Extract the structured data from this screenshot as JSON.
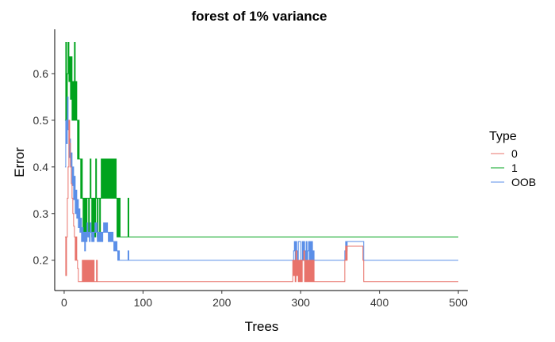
{
  "chart_data": {
    "type": "line",
    "title": "forest of 1% variance",
    "xlabel": "Trees",
    "ylabel": "Error",
    "xlim": [
      -12,
      512
    ],
    "ylim": [
      0.135,
      0.695
    ],
    "x_ticks": [
      0,
      100,
      200,
      300,
      400,
      500
    ],
    "y_ticks": [
      0.2,
      0.3,
      0.4,
      0.5,
      0.6
    ],
    "grid": false,
    "legend": {
      "title": "Type",
      "position": "right"
    },
    "series": [
      {
        "name": "1",
        "color": "#00a31d",
        "points": [
          [
            1,
            0.5
          ],
          [
            2,
            0.667
          ],
          [
            3,
            0.5
          ],
          [
            4,
            0.6
          ],
          [
            5,
            0.667
          ],
          [
            6,
            0.583
          ],
          [
            7,
            0.636
          ],
          [
            8,
            0.545
          ],
          [
            9,
            0.636
          ],
          [
            10,
            0.5
          ],
          [
            11,
            0.583
          ],
          [
            12,
            0.5
          ],
          [
            13,
            0.667
          ],
          [
            14,
            0.5
          ],
          [
            15,
            0.583
          ],
          [
            16,
            0.5
          ],
          [
            17,
            0.417
          ],
          [
            18,
            0.5
          ],
          [
            19,
            0.417
          ],
          [
            20,
            0.417
          ],
          [
            21,
            0.333
          ],
          [
            22,
            0.417
          ],
          [
            23,
            0.333
          ],
          [
            24,
            0.25
          ],
          [
            25,
            0.333
          ],
          [
            26,
            0.25
          ],
          [
            27,
            0.333
          ],
          [
            28,
            0.25
          ],
          [
            29,
            0.333
          ],
          [
            30,
            0.333
          ],
          [
            31,
            0.25
          ],
          [
            32,
            0.333
          ],
          [
            33,
            0.417
          ],
          [
            34,
            0.333
          ],
          [
            35,
            0.25
          ],
          [
            36,
            0.333
          ],
          [
            37,
            0.25
          ],
          [
            38,
            0.333
          ],
          [
            39,
            0.25
          ],
          [
            40,
            0.417
          ],
          [
            41,
            0.333
          ],
          [
            42,
            0.25
          ],
          [
            43,
            0.333
          ],
          [
            44,
            0.333
          ],
          [
            45,
            0.25
          ],
          [
            46,
            0.333
          ],
          [
            47,
            0.417
          ],
          [
            48,
            0.333
          ],
          [
            49,
            0.417
          ],
          [
            50,
            0.333
          ],
          [
            51,
            0.417
          ],
          [
            52,
            0.333
          ],
          [
            53,
            0.417
          ],
          [
            54,
            0.333
          ],
          [
            55,
            0.417
          ],
          [
            56,
            0.333
          ],
          [
            57,
            0.417
          ],
          [
            58,
            0.333
          ],
          [
            59,
            0.417
          ],
          [
            60,
            0.333
          ],
          [
            61,
            0.417
          ],
          [
            62,
            0.333
          ],
          [
            63,
            0.417
          ],
          [
            64,
            0.333
          ],
          [
            65,
            0.417
          ],
          [
            66,
            0.333
          ],
          [
            67,
            0.25
          ],
          [
            68,
            0.333
          ],
          [
            69,
            0.25
          ],
          [
            70,
            0.333
          ],
          [
            71,
            0.25
          ],
          [
            72,
            0.25
          ],
          [
            73,
            0.25
          ],
          [
            74,
            0.25
          ],
          [
            75,
            0.25
          ],
          [
            76,
            0.25
          ],
          [
            77,
            0.25
          ],
          [
            78,
            0.25
          ],
          [
            79,
            0.25
          ],
          [
            80,
            0.25
          ],
          [
            81,
            0.333
          ],
          [
            82,
            0.25
          ],
          [
            83,
            0.25
          ],
          [
            84,
            0.25
          ],
          [
            85,
            0.25
          ],
          [
            86,
            0.25
          ],
          [
            87,
            0.25
          ],
          [
            88,
            0.25
          ],
          [
            89,
            0.25
          ],
          [
            90,
            0.25
          ],
          [
            100,
            0.25
          ],
          [
            200,
            0.25
          ],
          [
            300,
            0.25
          ],
          [
            400,
            0.25
          ],
          [
            500,
            0.25
          ]
        ]
      },
      {
        "name": "OOB",
        "color": "#5b8fe8",
        "points": [
          [
            1,
            0.4
          ],
          [
            2,
            0.5
          ],
          [
            3,
            0.45
          ],
          [
            4,
            0.55
          ],
          [
            5,
            0.48
          ],
          [
            6,
            0.42
          ],
          [
            7,
            0.46
          ],
          [
            8,
            0.4
          ],
          [
            9,
            0.43
          ],
          [
            10,
            0.36
          ],
          [
            11,
            0.4
          ],
          [
            12,
            0.33
          ],
          [
            13,
            0.38
          ],
          [
            14,
            0.3
          ],
          [
            15,
            0.35
          ],
          [
            16,
            0.29
          ],
          [
            17,
            0.33
          ],
          [
            18,
            0.27
          ],
          [
            19,
            0.31
          ],
          [
            20,
            0.26
          ],
          [
            21,
            0.29
          ],
          [
            22,
            0.24
          ],
          [
            23,
            0.27
          ],
          [
            24,
            0.24
          ],
          [
            25,
            0.26
          ],
          [
            26,
            0.22
          ],
          [
            27,
            0.26
          ],
          [
            28,
            0.24
          ],
          [
            29,
            0.28
          ],
          [
            30,
            0.25
          ],
          [
            31,
            0.26
          ],
          [
            32,
            0.24
          ],
          [
            33,
            0.28
          ],
          [
            34,
            0.26
          ],
          [
            35,
            0.24
          ],
          [
            36,
            0.26
          ],
          [
            37,
            0.24
          ],
          [
            38,
            0.26
          ],
          [
            39,
            0.28
          ],
          [
            40,
            0.26
          ],
          [
            41,
            0.28
          ],
          [
            42,
            0.24
          ],
          [
            43,
            0.26
          ],
          [
            44,
            0.24
          ],
          [
            45,
            0.26
          ],
          [
            46,
            0.24
          ],
          [
            47,
            0.26
          ],
          [
            48,
            0.24
          ],
          [
            49,
            0.26
          ],
          [
            50,
            0.28
          ],
          [
            51,
            0.26
          ],
          [
            52,
            0.28
          ],
          [
            53,
            0.26
          ],
          [
            54,
            0.28
          ],
          [
            55,
            0.26
          ],
          [
            56,
            0.24
          ],
          [
            57,
            0.26
          ],
          [
            58,
            0.24
          ],
          [
            59,
            0.26
          ],
          [
            60,
            0.24
          ],
          [
            61,
            0.26
          ],
          [
            62,
            0.24
          ],
          [
            63,
            0.22
          ],
          [
            64,
            0.24
          ],
          [
            65,
            0.22
          ],
          [
            66,
            0.24
          ],
          [
            67,
            0.22
          ],
          [
            68,
            0.2
          ],
          [
            69,
            0.22
          ],
          [
            70,
            0.2
          ],
          [
            71,
            0.2
          ],
          [
            72,
            0.2
          ],
          [
            73,
            0.2
          ],
          [
            74,
            0.2
          ],
          [
            75,
            0.2
          ],
          [
            76,
            0.2
          ],
          [
            77,
            0.2
          ],
          [
            78,
            0.2
          ],
          [
            79,
            0.2
          ],
          [
            80,
            0.2
          ],
          [
            81,
            0.22
          ],
          [
            82,
            0.2
          ],
          [
            83,
            0.2
          ],
          [
            84,
            0.2
          ],
          [
            85,
            0.2
          ],
          [
            290,
            0.2
          ],
          [
            291,
            0.22
          ],
          [
            292,
            0.24
          ],
          [
            293,
            0.2
          ],
          [
            294,
            0.24
          ],
          [
            295,
            0.22
          ],
          [
            296,
            0.2
          ],
          [
            297,
            0.24
          ],
          [
            298,
            0.24
          ],
          [
            299,
            0.24
          ],
          [
            300,
            0.2
          ],
          [
            301,
            0.2
          ],
          [
            302,
            0.24
          ],
          [
            303,
            0.2
          ],
          [
            304,
            0.24
          ],
          [
            305,
            0.22
          ],
          [
            306,
            0.2
          ],
          [
            307,
            0.24
          ],
          [
            308,
            0.2
          ],
          [
            309,
            0.22
          ],
          [
            310,
            0.24
          ],
          [
            311,
            0.2
          ],
          [
            312,
            0.24
          ],
          [
            313,
            0.2
          ],
          [
            314,
            0.24
          ],
          [
            315,
            0.2
          ],
          [
            316,
            0.22
          ],
          [
            317,
            0.2
          ],
          [
            318,
            0.2
          ],
          [
            319,
            0.2
          ],
          [
            320,
            0.2
          ],
          [
            355,
            0.2
          ],
          [
            356,
            0.22
          ],
          [
            357,
            0.24
          ],
          [
            358,
            0.22
          ],
          [
            359,
            0.24
          ],
          [
            360,
            0.24
          ],
          [
            370,
            0.24
          ],
          [
            379,
            0.24
          ],
          [
            380,
            0.2
          ],
          [
            400,
            0.2
          ],
          [
            500,
            0.2
          ]
        ]
      },
      {
        "name": "0",
        "color": "#e8736b",
        "points": [
          [
            1,
            0.25
          ],
          [
            2,
            0.167
          ],
          [
            3,
            0.25
          ],
          [
            4,
            0.333
          ],
          [
            5,
            0.4
          ],
          [
            6,
            0.5
          ],
          [
            7,
            0.45
          ],
          [
            8,
            0.4
          ],
          [
            9,
            0.364
          ],
          [
            10,
            0.333
          ],
          [
            11,
            0.3
          ],
          [
            12,
            0.273
          ],
          [
            13,
            0.25
          ],
          [
            14,
            0.2
          ],
          [
            15,
            0.25
          ],
          [
            16,
            0.2
          ],
          [
            17,
            0.182
          ],
          [
            18,
            0.154
          ],
          [
            19,
            0.154
          ],
          [
            20,
            0.154
          ],
          [
            21,
            0.154
          ],
          [
            22,
            0.154
          ],
          [
            23,
            0.2
          ],
          [
            24,
            0.154
          ],
          [
            25,
            0.2
          ],
          [
            26,
            0.154
          ],
          [
            27,
            0.2
          ],
          [
            28,
            0.154
          ],
          [
            29,
            0.2
          ],
          [
            30,
            0.154
          ],
          [
            31,
            0.2
          ],
          [
            32,
            0.154
          ],
          [
            33,
            0.2
          ],
          [
            34,
            0.154
          ],
          [
            35,
            0.2
          ],
          [
            36,
            0.154
          ],
          [
            37,
            0.2
          ],
          [
            38,
            0.154
          ],
          [
            39,
            0.154
          ],
          [
            40,
            0.154
          ],
          [
            41,
            0.2
          ],
          [
            42,
            0.154
          ],
          [
            43,
            0.154
          ],
          [
            44,
            0.154
          ],
          [
            45,
            0.154
          ],
          [
            50,
            0.154
          ],
          [
            60,
            0.154
          ],
          [
            70,
            0.154
          ],
          [
            80,
            0.154
          ],
          [
            100,
            0.154
          ],
          [
            200,
            0.154
          ],
          [
            289,
            0.154
          ],
          [
            290,
            0.2
          ],
          [
            291,
            0.167
          ],
          [
            292,
            0.2
          ],
          [
            293,
            0.154
          ],
          [
            294,
            0.22
          ],
          [
            295,
            0.167
          ],
          [
            296,
            0.2
          ],
          [
            297,
            0.154
          ],
          [
            298,
            0.2
          ],
          [
            299,
            0.154
          ],
          [
            300,
            0.2
          ],
          [
            301,
            0.154
          ],
          [
            302,
            0.2
          ],
          [
            303,
            0.2
          ],
          [
            304,
            0.22
          ],
          [
            305,
            0.154
          ],
          [
            306,
            0.2
          ],
          [
            307,
            0.154
          ],
          [
            308,
            0.2
          ],
          [
            309,
            0.154
          ],
          [
            310,
            0.2
          ],
          [
            311,
            0.154
          ],
          [
            312,
            0.2
          ],
          [
            313,
            0.154
          ],
          [
            314,
            0.2
          ],
          [
            315,
            0.154
          ],
          [
            316,
            0.2
          ],
          [
            317,
            0.154
          ],
          [
            318,
            0.154
          ],
          [
            320,
            0.154
          ],
          [
            355,
            0.154
          ],
          [
            356,
            0.2
          ],
          [
            357,
            0.23
          ],
          [
            358,
            0.2
          ],
          [
            359,
            0.23
          ],
          [
            360,
            0.23
          ],
          [
            370,
            0.23
          ],
          [
            378,
            0.23
          ],
          [
            379,
            0.2
          ],
          [
            380,
            0.154
          ],
          [
            400,
            0.154
          ],
          [
            500,
            0.154
          ]
        ]
      }
    ]
  }
}
